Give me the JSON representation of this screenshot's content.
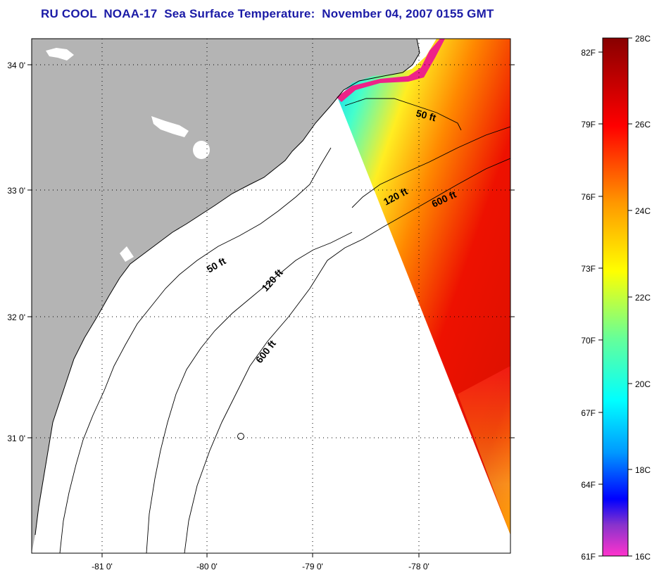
{
  "title": "RU COOL  NOAA-17  Sea Surface Temperature:  November 04, 2007 0155 GMT",
  "map": {
    "lat_labels": [
      "34 0'",
      "33 0'",
      "32 0'",
      "31 0'"
    ],
    "lon_labels": [
      "-81 0'",
      "-80 0'",
      "-79 0'",
      "-78 0'"
    ],
    "contours": [
      {
        "label": "50 ft"
      },
      {
        "label": "120 ft"
      },
      {
        "label": "600 ft"
      },
      {
        "label": "50 ft"
      },
      {
        "label": "120 ft"
      },
      {
        "label": "600 ft"
      }
    ],
    "colors": {
      "land": "#b4b4b4",
      "ocean_nodata": "#ffffff",
      "grid": "#000000"
    }
  },
  "colorbar": {
    "f_labels": [
      "82F",
      "79F",
      "76F",
      "73F",
      "70F",
      "67F",
      "64F",
      "61F"
    ],
    "c_labels": [
      "28C",
      "26C",
      "24C",
      "22C",
      "20C",
      "18C",
      "16C"
    ],
    "stops": [
      "#ff33cc",
      "#8833cc",
      "#0000ff",
      "#0099ff",
      "#00ffff",
      "#66ff99",
      "#ffff00",
      "#ff9900",
      "#ff0000",
      "#880000"
    ]
  }
}
